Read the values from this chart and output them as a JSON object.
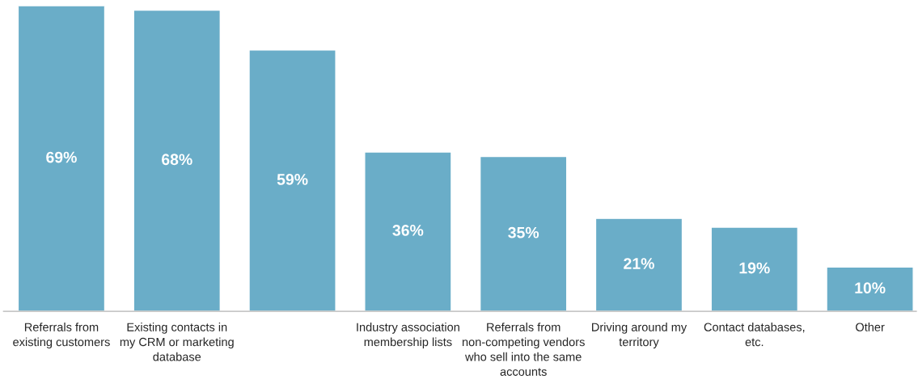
{
  "chart_data": {
    "type": "bar",
    "categories": [
      "Referrals from existing customers",
      "Existing contacts in my CRM or marketing database",
      null,
      "Industry association membership lists",
      "Referrals from non-competing vendors who sell into the same accounts",
      "Driving around my territory",
      "Contact databases, etc.",
      "Other"
    ],
    "values": [
      69,
      68,
      59,
      36,
      35,
      21,
      19,
      10
    ],
    "value_labels": [
      "69%",
      "68%",
      "59%",
      "36%",
      "35%",
      "21%",
      "19%",
      "10%"
    ],
    "color": "#6aadc8",
    "grid": false,
    "legend": false
  }
}
